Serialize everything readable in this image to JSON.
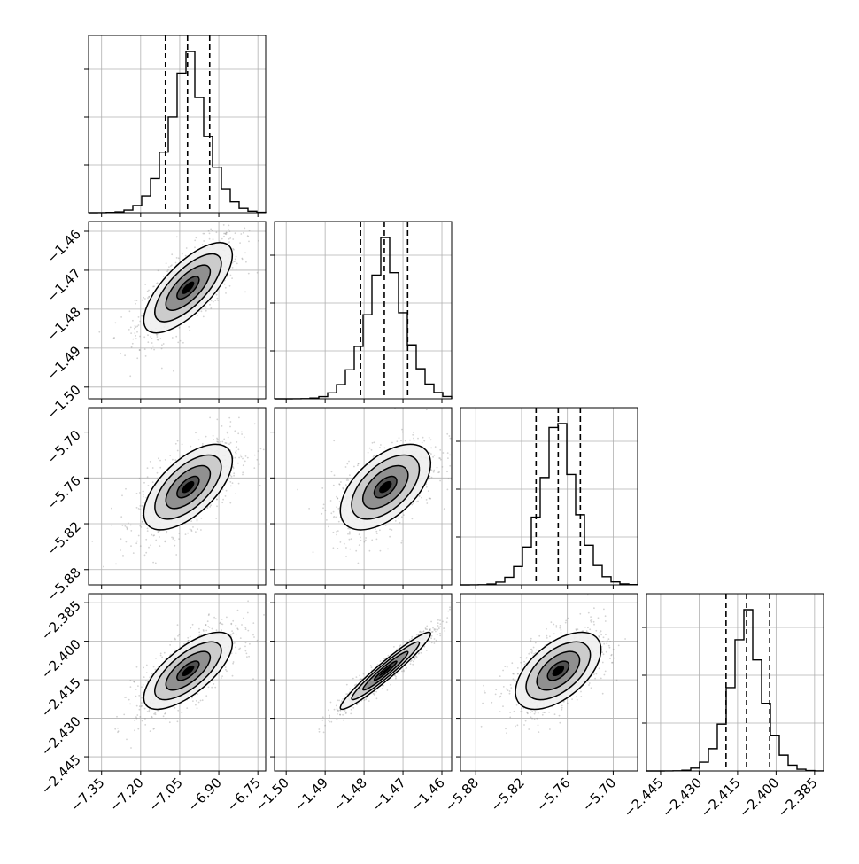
{
  "chart_data": {
    "type": "corner",
    "title": "",
    "parameters": [
      {
        "name": "",
        "range": [
          -7.4,
          -6.72
        ],
        "ticks": [
          -7.35,
          -7.2,
          -7.05,
          -6.9,
          -6.75
        ],
        "tick_labels": [
          "−7.35",
          "−7.20",
          "−7.05",
          "−6.90",
          "−6.75"
        ],
        "mean": -7.018,
        "std": 0.085,
        "quantiles": [
          -7.105,
          -7.02,
          -6.935
        ]
      },
      {
        "name": "",
        "range": [
          -1.503,
          -1.4575
        ],
        "ticks": [
          -1.5,
          -1.49,
          -1.48,
          -1.47,
          -1.46
        ],
        "tick_labels": [
          "−1.50",
          "−1.49",
          "−1.48",
          "−1.47",
          "−1.46"
        ],
        "mean": -1.4745,
        "std": 0.0058,
        "quantiles": [
          -1.4809,
          -1.4748,
          -1.4688
        ]
      },
      {
        "name": "",
        "range": [
          -5.9,
          -5.668
        ],
        "ticks": [
          -5.88,
          -5.82,
          -5.76,
          -5.7
        ],
        "tick_labels": [
          "−5.88",
          "−5.82",
          "−5.76",
          "−5.70"
        ],
        "mean": -5.772,
        "std": 0.028,
        "quantiles": [
          -5.801,
          -5.772,
          -5.743
        ]
      },
      {
        "name": "",
        "range": [
          -2.4505,
          -2.3815
        ],
        "ticks": [
          -2.445,
          -2.43,
          -2.415,
          -2.4,
          -2.385
        ],
        "tick_labels": [
          "−2.445",
          "−2.430",
          "−2.415",
          "−2.400",
          "−2.385"
        ],
        "mean": -2.4115,
        "std": 0.0075,
        "quantiles": [
          -2.4195,
          -2.4115,
          -2.4025
        ]
      }
    ],
    "correlations": [
      [
        1.0,
        0.72,
        0.62,
        0.7
      ],
      [
        0.72,
        1.0,
        0.55,
        0.96
      ],
      [
        0.62,
        0.55,
        1.0,
        0.55
      ],
      [
        0.7,
        0.96,
        0.55,
        1.0
      ]
    ],
    "hist_bins": 20,
    "contour_sigma_levels": [
      0.5,
      1.0,
      1.5,
      2.0
    ],
    "grid": true,
    "colors": {
      "hist": "#000000",
      "points": "#808080",
      "contour": "#000000",
      "grid": "#b0b0b0"
    }
  }
}
